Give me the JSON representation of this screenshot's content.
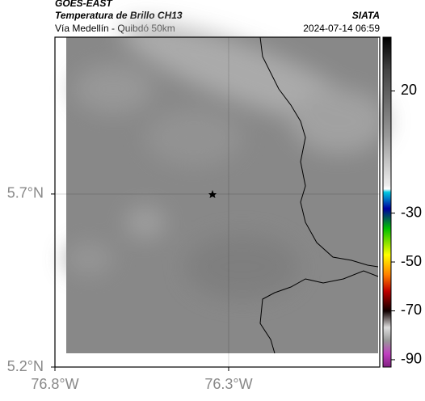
{
  "header": {
    "source": "GOES-EAST",
    "title": "Temperatura de Brillo CH13",
    "route": "Vía Medellín - Quibdó 50km",
    "brand": "SIATA",
    "timestamp": "2024-07-14 06:59"
  },
  "map": {
    "lonlim": [
      -76.8,
      -75.865
    ],
    "latlim": [
      5.2,
      6.153
    ],
    "lon_ticks": [
      {
        "value": -76.8,
        "label": "76.8°W"
      },
      {
        "value": -76.3,
        "label": "76.3°W"
      }
    ],
    "lat_ticks": [
      {
        "value": 5.7,
        "label": "5.7°N"
      },
      {
        "value": 5.2,
        "label": "5.2°N"
      }
    ]
  },
  "colorbar": {
    "range": [
      -93,
      42
    ],
    "ticks": [
      20,
      -30,
      -50,
      -70,
      -90
    ]
  }
}
